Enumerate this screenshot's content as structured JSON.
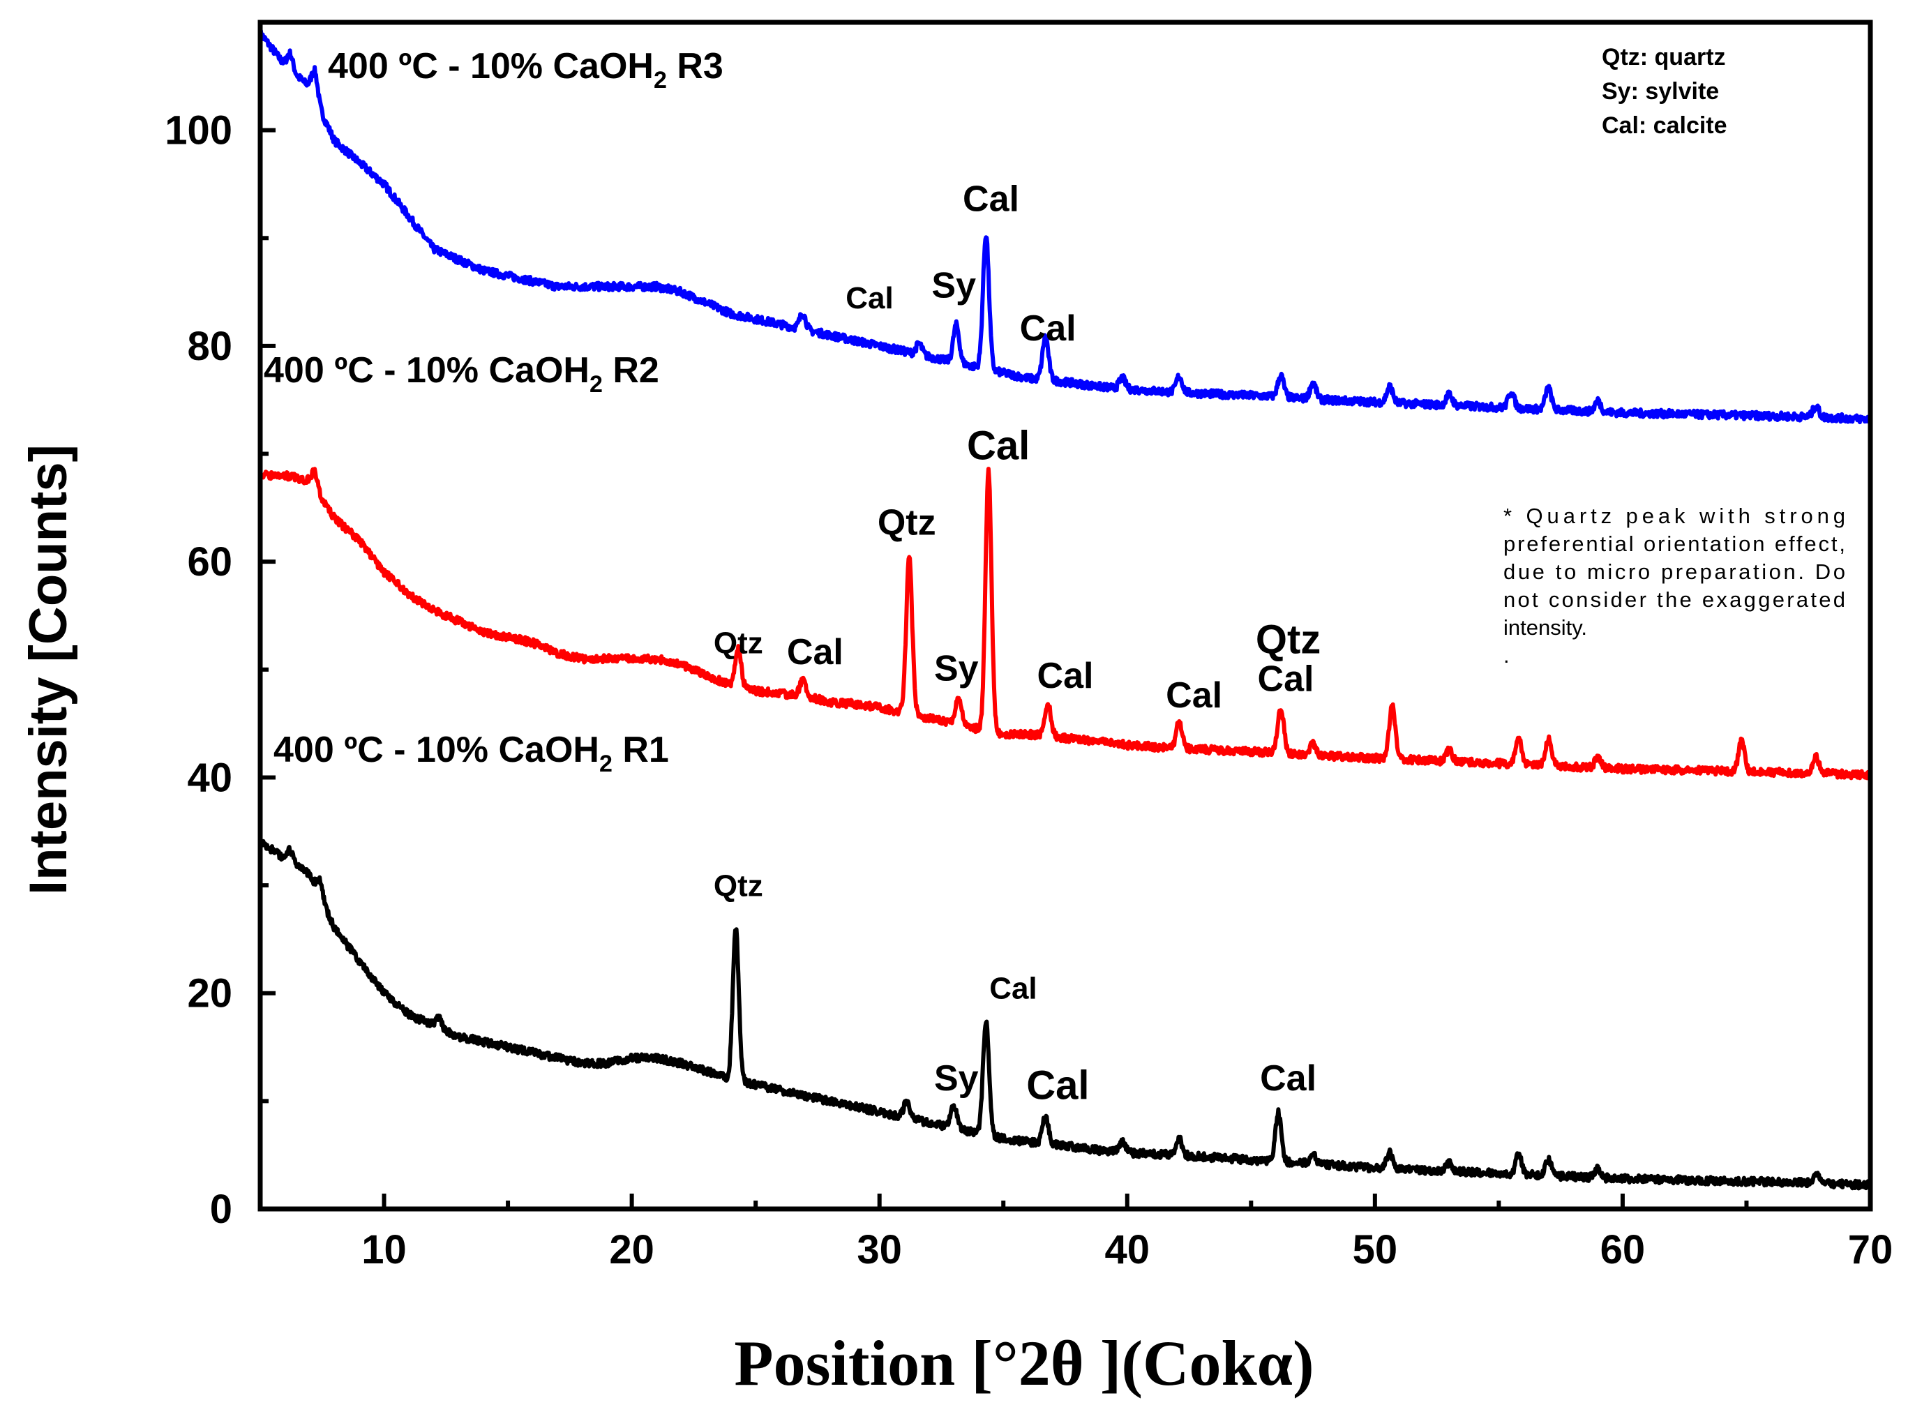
{
  "chart_data": {
    "type": "line",
    "title": "",
    "xlabel": "Position [°2θ ](Cokα)",
    "ylabel": "Intensity [Counts]",
    "xlim": [
      5,
      70
    ],
    "ylim": [
      0,
      110
    ],
    "x_ticks": [
      10,
      20,
      30,
      40,
      50,
      60,
      70
    ],
    "y_ticks": [
      0,
      20,
      40,
      60,
      80,
      100
    ],
    "series": [
      {
        "name": "400 ºC - 10% CaOH2 R3",
        "label_main": "400 ºC - 10% CaOH",
        "label_sub": "2",
        "label_tail": " R3",
        "color": "#0000ff",
        "baseline": [
          [
            5,
            109
          ],
          [
            6,
            106
          ],
          [
            7,
            104
          ],
          [
            8,
            99
          ],
          [
            9,
            97
          ],
          [
            10,
            95
          ],
          [
            11,
            92
          ],
          [
            12,
            89
          ],
          [
            13,
            88
          ],
          [
            14,
            87
          ],
          [
            15,
            86.5
          ],
          [
            16,
            86
          ],
          [
            17,
            85.5
          ],
          [
            18,
            85.5
          ],
          [
            19,
            85.5
          ],
          [
            20,
            85.5
          ],
          [
            21,
            85.5
          ],
          [
            22,
            85
          ],
          [
            23,
            84
          ],
          [
            24,
            83
          ],
          [
            25,
            82.5
          ],
          [
            26,
            82
          ],
          [
            27,
            81.5
          ],
          [
            28,
            81
          ],
          [
            29,
            80.5
          ],
          [
            30,
            80
          ],
          [
            31,
            79.5
          ],
          [
            32,
            79
          ],
          [
            33,
            78.5
          ],
          [
            34,
            78
          ],
          [
            35,
            77.5
          ],
          [
            36,
            77
          ],
          [
            37,
            76.8
          ],
          [
            38,
            76.5
          ],
          [
            39,
            76.2
          ],
          [
            40,
            76
          ],
          [
            42,
            75.7
          ],
          [
            44,
            75.5
          ],
          [
            46,
            75.3
          ],
          [
            48,
            75
          ],
          [
            50,
            74.8
          ],
          [
            52,
            74.6
          ],
          [
            54,
            74.4
          ],
          [
            56,
            74.2
          ],
          [
            58,
            74
          ],
          [
            60,
            73.8
          ],
          [
            62,
            73.7
          ],
          [
            64,
            73.6
          ],
          [
            66,
            73.5
          ],
          [
            68,
            73.4
          ],
          [
            70,
            73.2
          ]
        ],
        "peaks": [
          [
            6.2,
            1.5
          ],
          [
            7.2,
            2.5
          ],
          [
            26.9,
            1.5
          ],
          [
            31.6,
            1
          ],
          [
            33.1,
            3.5
          ],
          [
            34.3,
            12.5
          ],
          [
            36.7,
            4
          ],
          [
            39.8,
            1
          ],
          [
            42.1,
            1.5
          ],
          [
            46.2,
            2
          ],
          [
            47.5,
            1.5
          ],
          [
            50.6,
            1.5
          ],
          [
            53.0,
            1
          ],
          [
            55.5,
            1.5
          ],
          [
            57.0,
            2
          ],
          [
            59.0,
            1
          ],
          [
            67.8,
            1
          ]
        ]
      },
      {
        "name": "400 ºC - 10% CaOH2 R2",
        "label_main": "400 ºC - 10% CaOH",
        "label_sub": "2",
        "label_tail": " R2",
        "color": "#ff0000",
        "baseline": [
          [
            5,
            68
          ],
          [
            6,
            68
          ],
          [
            7,
            67.5
          ],
          [
            8,
            64
          ],
          [
            9,
            62
          ],
          [
            10,
            59
          ],
          [
            11,
            57
          ],
          [
            12,
            55.5
          ],
          [
            13,
            54.5
          ],
          [
            14,
            53.5
          ],
          [
            15,
            53
          ],
          [
            16,
            52.5
          ],
          [
            17,
            51.5
          ],
          [
            18,
            51
          ],
          [
            19,
            51
          ],
          [
            20,
            51
          ],
          [
            21,
            51
          ],
          [
            22,
            50.5
          ],
          [
            23,
            49.5
          ],
          [
            24,
            48.5
          ],
          [
            25,
            48
          ],
          [
            26,
            47.8
          ],
          [
            27,
            47.5
          ],
          [
            28,
            47
          ],
          [
            29,
            46.8
          ],
          [
            30,
            46.5
          ],
          [
            31,
            46
          ],
          [
            32,
            45.5
          ],
          [
            33,
            45
          ],
          [
            34,
            44.5
          ],
          [
            35,
            44
          ],
          [
            36,
            44
          ],
          [
            37,
            43.8
          ],
          [
            38,
            43.5
          ],
          [
            39,
            43.3
          ],
          [
            40,
            43
          ],
          [
            42,
            42.7
          ],
          [
            44,
            42.5
          ],
          [
            46,
            42.3
          ],
          [
            48,
            42
          ],
          [
            50,
            41.8
          ],
          [
            52,
            41.6
          ],
          [
            54,
            41.4
          ],
          [
            56,
            41.2
          ],
          [
            58,
            41
          ],
          [
            60,
            40.8
          ],
          [
            62,
            40.7
          ],
          [
            64,
            40.6
          ],
          [
            66,
            40.5
          ],
          [
            68,
            40.4
          ],
          [
            70,
            40.2
          ]
        ],
        "peaks": [
          [
            7.2,
            1.5
          ],
          [
            24.3,
            3.5
          ],
          [
            26.9,
            1.5
          ],
          [
            31.2,
            14.5
          ],
          [
            33.2,
            2.5
          ],
          [
            34.4,
            24
          ],
          [
            36.8,
            3
          ],
          [
            42.1,
            2.5
          ],
          [
            46.2,
            4.2
          ],
          [
            47.5,
            1
          ],
          [
            50.7,
            5
          ],
          [
            53.0,
            1
          ],
          [
            55.8,
            2.5
          ],
          [
            57.0,
            2.5
          ],
          [
            59.0,
            1
          ],
          [
            64.8,
            2.8
          ],
          [
            67.8,
            1.5
          ]
        ]
      },
      {
        "name": "400 ºC - 10% CaOH2 R1",
        "label_main": "400 ºC - 10% CaOH",
        "label_sub": "2",
        "label_tail": " R1",
        "color": "#000000",
        "baseline": [
          [
            5,
            34
          ],
          [
            6,
            32.5
          ],
          [
            7,
            31
          ],
          [
            8,
            26
          ],
          [
            9,
            23
          ],
          [
            10,
            20
          ],
          [
            11,
            18
          ],
          [
            12,
            17
          ],
          [
            13,
            16
          ],
          [
            14,
            15.5
          ],
          [
            15,
            15
          ],
          [
            16,
            14.5
          ],
          [
            17,
            14
          ],
          [
            18,
            13.5
          ],
          [
            19,
            13.5
          ],
          [
            20,
            14
          ],
          [
            21,
            14
          ],
          [
            22,
            13.5
          ],
          [
            23,
            12.8
          ],
          [
            24,
            12
          ],
          [
            25,
            11.5
          ],
          [
            26,
            11
          ],
          [
            27,
            10.5
          ],
          [
            28,
            10
          ],
          [
            29,
            9.5
          ],
          [
            30,
            9
          ],
          [
            31,
            8.5
          ],
          [
            32,
            8
          ],
          [
            33,
            7.5
          ],
          [
            34,
            7
          ],
          [
            35,
            6.5
          ],
          [
            36,
            6.2
          ],
          [
            37,
            6
          ],
          [
            38,
            5.7
          ],
          [
            39,
            5.4
          ],
          [
            40,
            5.2
          ],
          [
            42,
            5
          ],
          [
            44,
            4.7
          ],
          [
            46,
            4.4
          ],
          [
            48,
            4.1
          ],
          [
            50,
            3.8
          ],
          [
            52,
            3.6
          ],
          [
            54,
            3.4
          ],
          [
            56,
            3.2
          ],
          [
            58,
            3
          ],
          [
            60,
            2.8
          ],
          [
            62,
            2.7
          ],
          [
            64,
            2.6
          ],
          [
            66,
            2.5
          ],
          [
            68,
            2.4
          ],
          [
            70,
            2.2
          ]
        ],
        "peaks": [
          [
            6.2,
            1
          ],
          [
            7.4,
            1.5
          ],
          [
            12.2,
            1
          ],
          [
            24.2,
            14
          ],
          [
            31.1,
            1.5
          ],
          [
            33.0,
            2
          ],
          [
            34.3,
            10.5
          ],
          [
            36.7,
            2.5
          ],
          [
            39.8,
            1
          ],
          [
            42.1,
            1.5
          ],
          [
            46.1,
            4.5
          ],
          [
            47.5,
            1
          ],
          [
            50.6,
            1.5
          ],
          [
            53.0,
            0.8
          ],
          [
            55.8,
            1.8
          ],
          [
            57.0,
            1.5
          ],
          [
            59.0,
            0.8
          ],
          [
            67.8,
            0.8
          ]
        ]
      }
    ],
    "peak_labels": [
      {
        "text": "Cal",
        "x": 29.6,
        "y": 83.5,
        "size": "medium"
      },
      {
        "text": "Sy",
        "x": 33.0,
        "y": 84.5,
        "size": "large"
      },
      {
        "text": "Cal",
        "x": 34.5,
        "y": 92.5,
        "size": "large"
      },
      {
        "text": "Cal",
        "x": 36.8,
        "y": 80.5,
        "size": "large"
      },
      {
        "text": "Qtz",
        "x": 24.3,
        "y": 51.5,
        "size": "medium"
      },
      {
        "text": "Cal",
        "x": 27.4,
        "y": 50.5,
        "size": "large"
      },
      {
        "text": "Qtz",
        "x": 31.1,
        "y": 62.5,
        "size": "large"
      },
      {
        "text": "Sy",
        "x": 33.1,
        "y": 49.0,
        "size": "large"
      },
      {
        "text": "Cal",
        "x": 34.8,
        "y": 69.5,
        "size": "xlarge"
      },
      {
        "text": "Cal",
        "x": 37.5,
        "y": 48.3,
        "size": "large"
      },
      {
        "text": "Cal",
        "x": 42.7,
        "y": 46.5,
        "size": "large"
      },
      {
        "text": "Qtz",
        "x": 46.5,
        "y": 51.5,
        "size": "xlarge"
      },
      {
        "text": "Cal",
        "x": 46.4,
        "y": 48.0,
        "size": "large"
      },
      {
        "text": "Qtz",
        "x": 24.3,
        "y": 29.0,
        "size": "medium"
      },
      {
        "text": "Cal",
        "x": 35.4,
        "y": 19.5,
        "size": "medium"
      },
      {
        "text": "Sy",
        "x": 33.1,
        "y": 11.0,
        "size": "large"
      },
      {
        "text": "Cal",
        "x": 37.2,
        "y": 10.2,
        "size": "xlarge"
      },
      {
        "text": "Cal",
        "x": 46.5,
        "y": 11.0,
        "size": "large"
      }
    ],
    "legend": [
      "Qtz: quartz",
      "Sy: sylvite",
      "Cal: calcite"
    ],
    "note_lines": [
      "* Quartz peak with strong",
      "preferential orientation effect,",
      "due to micro preparation. Do",
      "not consider  the exaggerated",
      "intensity.",
      "."
    ]
  }
}
